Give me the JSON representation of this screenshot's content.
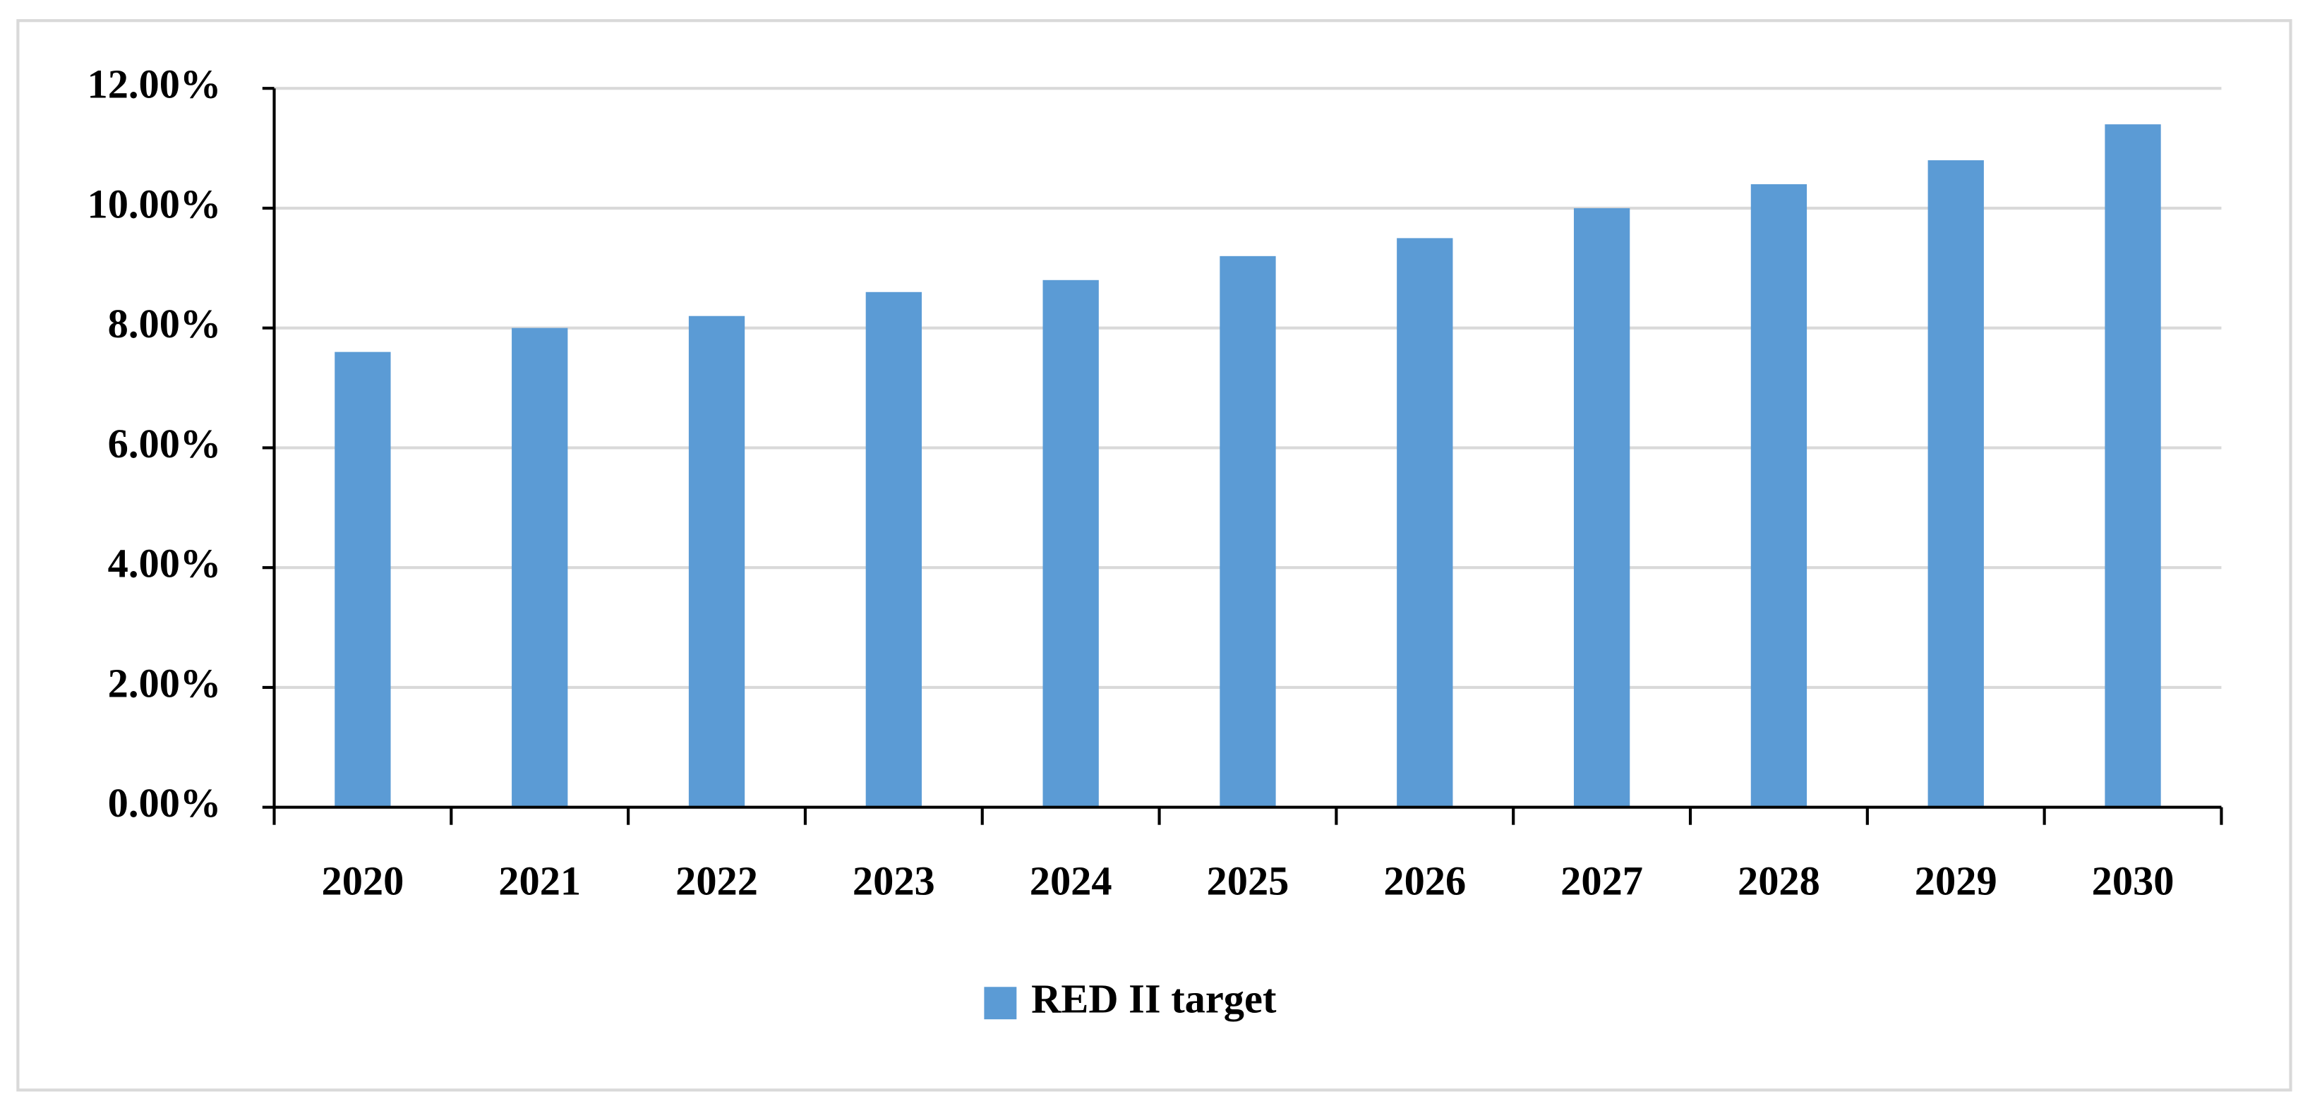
{
  "chart_data": {
    "type": "bar",
    "categories": [
      "2020",
      "2021",
      "2022",
      "2023",
      "2024",
      "2025",
      "2026",
      "2027",
      "2028",
      "2029",
      "2030"
    ],
    "series": [
      {
        "name": "RED II target",
        "color": "#5b9bd5",
        "values": [
          7.6,
          8.0,
          8.2,
          8.6,
          8.8,
          9.2,
          9.5,
          10.0,
          10.4,
          10.8,
          11.4
        ]
      }
    ],
    "ylim": [
      0,
      12
    ],
    "yticks": [
      {
        "value": 0,
        "label": "0.00%"
      },
      {
        "value": 2,
        "label": "2.00%"
      },
      {
        "value": 4,
        "label": "4.00%"
      },
      {
        "value": 6,
        "label": "6.00%"
      },
      {
        "value": 8,
        "label": "8.00%"
      },
      {
        "value": 10,
        "label": "10.00%"
      },
      {
        "value": 12,
        "label": "12.00%"
      }
    ],
    "grid": true,
    "legend": "bottom"
  }
}
